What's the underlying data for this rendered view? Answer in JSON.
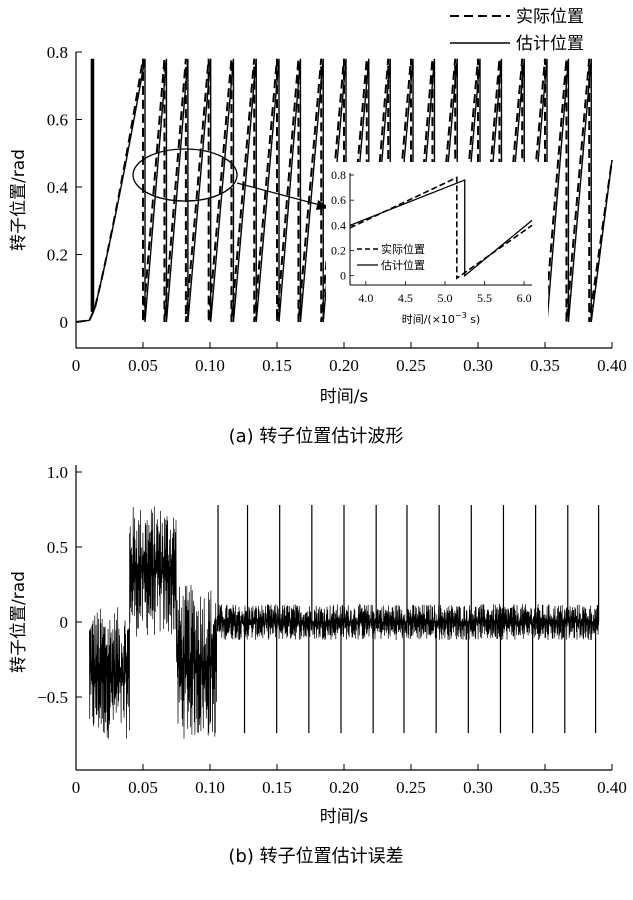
{
  "chart_data": [
    {
      "type": "line",
      "title": "",
      "xlabel": "时间/s",
      "ylabel": "转子位置/rad",
      "xlim": [
        0,
        0.4
      ],
      "ylim": [
        0,
        0.8
      ],
      "x_ticks": [
        "0",
        "0.05",
        "0.10",
        "0.15",
        "0.20",
        "0.25",
        "0.30",
        "0.35",
        "0.40"
      ],
      "y_ticks": [
        "0",
        "0.2",
        "0.4",
        "0.6",
        "0.8"
      ],
      "legend_position": "top-right",
      "series": [
        {
          "name": "实际位置",
          "style": "dashed",
          "color": "#000000",
          "description_points": [
            [
              0,
              0
            ],
            [
              0.01,
              0.02
            ],
            [
              0.05,
              0.78
            ],
            [
              0.051,
              0
            ],
            [
              0.065,
              0.78
            ],
            [
              0.066,
              0
            ],
            [
              0.4,
              0.48
            ]
          ]
        },
        {
          "name": "估计位置",
          "style": "solid",
          "color": "#000000",
          "description_points": [
            [
              0,
              0
            ],
            [
              0.01,
              0.02
            ],
            [
              0.05,
              0.78
            ],
            [
              0.051,
              0
            ],
            [
              0.065,
              0.78
            ],
            [
              0.066,
              0
            ],
            [
              0.4,
              0.48
            ]
          ]
        }
      ],
      "sawtooth_wraps_x": [
        0.05,
        0.066,
        0.082,
        0.099,
        0.116,
        0.133,
        0.15,
        0.166,
        0.183,
        0.2,
        0.217,
        0.233,
        0.25,
        0.266,
        0.283,
        0.3,
        0.316,
        0.333,
        0.35,
        0.366,
        0.383
      ],
      "inset": {
        "xlabel": "时间/(×10⁻³ s)",
        "xlabel_parts": {
          "prefix": "时间/(×10",
          "exp": "−3",
          "suffix": " s)"
        },
        "x_ticks": [
          "4.0",
          "4.5",
          "5.0",
          "5.5",
          "6.0"
        ],
        "y_ticks": [
          "0",
          "0.2",
          "0.4",
          "0.6",
          "0.8"
        ],
        "xlim": [
          3.8,
          6.1
        ],
        "ylim": [
          -0.05,
          0.8
        ],
        "legend": [
          "实际位置",
          "估计位置"
        ],
        "actual": [
          [
            3.8,
            0.38
          ],
          [
            5.15,
            0.78
          ],
          [
            5.15,
            -0.02
          ],
          [
            6.1,
            0.4
          ]
        ],
        "estimated": [
          [
            3.8,
            0.4
          ],
          [
            5.25,
            0.76
          ],
          [
            5.25,
            0.0
          ],
          [
            6.1,
            0.44
          ]
        ]
      },
      "caption": "(a) 转子位置估计波形"
    },
    {
      "type": "line",
      "title": "",
      "xlabel": "时间/s",
      "ylabel": "转子位置/rad",
      "xlim": [
        0,
        0.4
      ],
      "ylim": [
        -1.0,
        1.0
      ],
      "x_ticks": [
        "0",
        "0.05",
        "0.10",
        "0.15",
        "0.20",
        "0.25",
        "0.30",
        "0.35",
        "0.40"
      ],
      "y_ticks": [
        "1.0",
        "0.5",
        "0",
        "−0.5"
      ],
      "series": [
        {
          "name": "",
          "style": "solid",
          "color": "#000000",
          "ranges": [
            {
              "x": [
                0.01,
                0.04
              ],
              "y": [
                -0.78,
                0.1
              ]
            },
            {
              "x": [
                0.04,
                0.075
              ],
              "y": [
                -0.1,
                0.78
              ]
            },
            {
              "x": [
                0.075,
                0.105
              ],
              "y": [
                -0.78,
                0.25
              ]
            },
            {
              "x": [
                0.105,
                0.39
              ],
              "y": [
                -0.12,
                0.12
              ]
            }
          ],
          "spikes_x": [
            0.106,
            0.128,
            0.152,
            0.176,
            0.2,
            0.224,
            0.247,
            0.271,
            0.295,
            0.319,
            0.343,
            0.367,
            0.39
          ],
          "spike_amplitude": 0.78
        }
      ],
      "caption": "(b) 转子位置估计误差"
    }
  ]
}
